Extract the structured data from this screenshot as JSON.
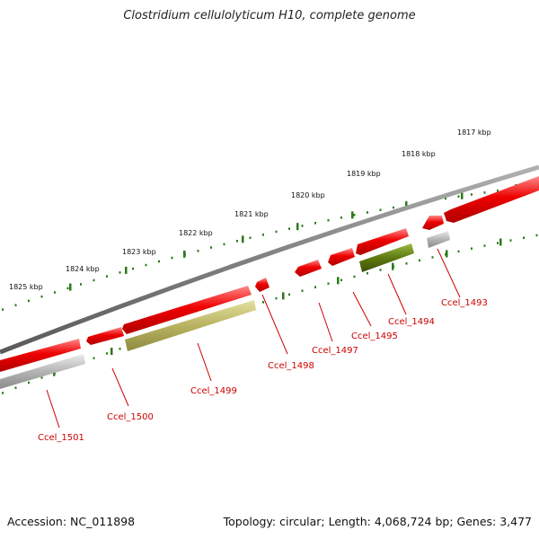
{
  "title": "Clostridium cellulolyticum H10, complete genome",
  "footer": {
    "accession": "Accession: NC_011898",
    "summary": "Topology: circular; Length: 4,068,724 bp; Genes: 3,477"
  },
  "colors": {
    "gene_red": "#ee0000",
    "gene_olive": "#b8b360",
    "gene_green": "#5e7a10",
    "gene_gray": "#b4b4b4",
    "backbone": "#808080",
    "ruler_green": "#2a7a1a",
    "label_red": "#cc0000"
  },
  "ruler": {
    "ticks": [
      "1817 kbp",
      "1818 kbp",
      "1819 kbp",
      "1820 kbp",
      "1821 kbp",
      "1822 kbp",
      "1823 kbp",
      "1824 kbp",
      "1825 kbp"
    ]
  },
  "genes": [
    {
      "name": "Ccel_1493",
      "color": "gene_gray"
    },
    {
      "name": "Ccel_1494",
      "color": "gene_green"
    },
    {
      "name": "Ccel_1495",
      "color": "gene_red"
    },
    {
      "name": "Ccel_1497",
      "color": "gene_red"
    },
    {
      "name": "Ccel_1498",
      "color": "gene_red"
    },
    {
      "name": "Ccel_1499",
      "color": "gene_olive"
    },
    {
      "name": "Ccel_1500",
      "color": "gene_red"
    },
    {
      "name": "Ccel_1501",
      "color": "gene_gray"
    }
  ]
}
